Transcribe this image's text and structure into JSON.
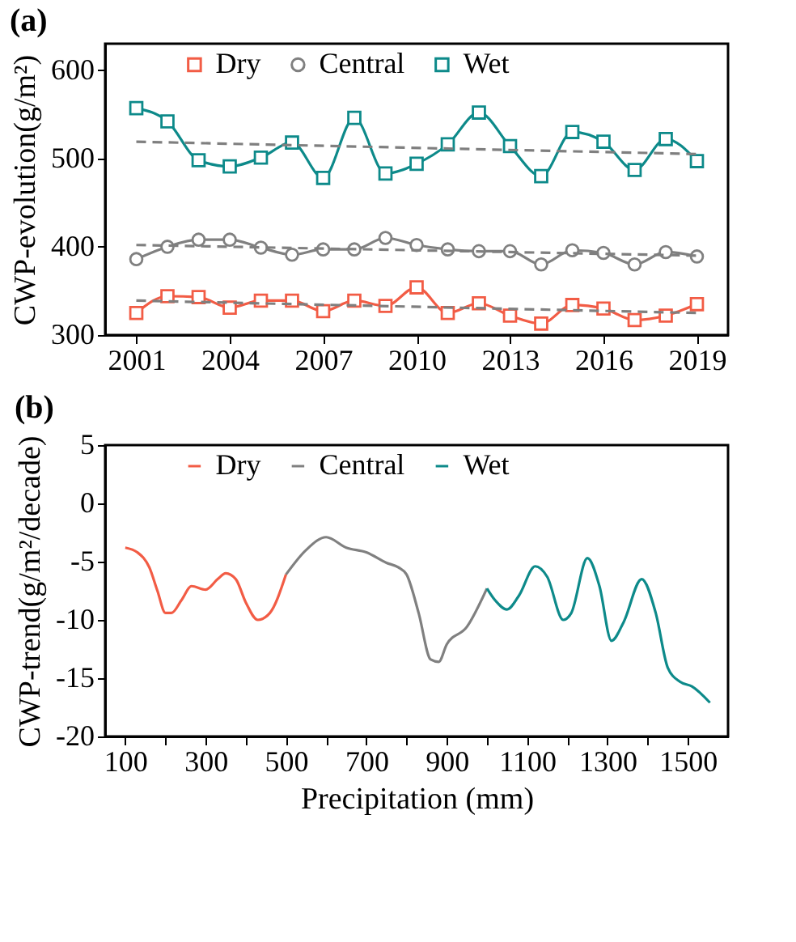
{
  "chart_data": [
    {
      "type": "line",
      "title": "(a)",
      "ylabel": "CWP-evolution(g/m²)",
      "xlim": [
        2000,
        2020
      ],
      "xticks": [
        2001,
        2004,
        2007,
        2010,
        2013,
        2016,
        2019
      ],
      "ylim": [
        300,
        630
      ],
      "yticks": [
        300,
        400,
        500,
        600
      ],
      "legend": "top",
      "grid": false,
      "x": [
        2001,
        2002,
        2003,
        2004,
        2005,
        2006,
        2007,
        2008,
        2009,
        2010,
        2011,
        2012,
        2013,
        2014,
        2015,
        2016,
        2017,
        2018,
        2019
      ],
      "series": [
        {
          "name": "Dry",
          "color": "#f25c45",
          "marker": "square",
          "values": [
            325,
            344,
            343,
            331,
            339,
            339,
            327,
            339,
            333,
            354,
            325,
            336,
            322,
            313,
            334,
            330,
            317,
            322,
            335
          ]
        },
        {
          "name": "Central",
          "color": "#808080",
          "marker": "circle",
          "values": [
            386,
            400,
            408,
            408,
            399,
            391,
            397,
            397,
            410,
            402,
            397,
            395,
            395,
            380,
            396,
            393,
            380,
            394,
            389
          ]
        },
        {
          "name": "Wet",
          "color": "#0d8a8a",
          "marker": "square",
          "values": [
            557,
            542,
            498,
            491,
            501,
            518,
            478,
            546,
            483,
            494,
            516,
            552,
            514,
            480,
            530,
            519,
            487,
            522,
            497
          ]
        },
        {
          "color": "#7f7f7f",
          "line_style": "dashed",
          "x": [
            2001,
            2019
          ],
          "values": [
            339,
            325
          ]
        },
        {
          "color": "#7f7f7f",
          "line_style": "dashed",
          "x": [
            2001,
            2019
          ],
          "values": [
            402,
            390
          ]
        },
        {
          "color": "#7f7f7f",
          "line_style": "dashed",
          "x": [
            2001,
            2019
          ],
          "values": [
            519,
            505
          ]
        }
      ]
    },
    {
      "type": "line",
      "title": "(b)",
      "xlabel": "Precipitation (mm)",
      "ylabel": "CWP-trend(g/m²/decade)",
      "xlim": [
        50,
        1600
      ],
      "xticks": [
        100,
        {
          "value": 200,
          "label": null
        },
        300,
        {
          "value": 400,
          "label": null
        },
        500,
        {
          "value": 600,
          "label": null
        },
        700,
        {
          "value": 800,
          "label": null
        },
        900,
        {
          "value": 1000,
          "label": null
        },
        1100,
        {
          "value": 1200,
          "label": null
        },
        1300,
        {
          "value": 1400,
          "label": null
        },
        1500
      ],
      "ylim": [
        -20,
        5
      ],
      "yticks": [
        -20,
        -15,
        -10,
        -5,
        0,
        5
      ],
      "legend": "top",
      "grid": false,
      "marker": "none",
      "series": [
        {
          "name": "Dry",
          "color": "#f25c45",
          "x": [
            100,
            130,
            160,
            180,
            200,
            215,
            240,
            265,
            300,
            330,
            350,
            375,
            400,
            430,
            460,
            500
          ],
          "values": [
            -3.8,
            -4.2,
            -5.5,
            -7.5,
            -9.4,
            -9.4,
            -8.3,
            -7.1,
            -7.4,
            -6.5,
            -6.0,
            -6.5,
            -8.5,
            -10.0,
            -9.4,
            -6.1
          ]
        },
        {
          "name": "Central",
          "color": "#808080",
          "x": [
            500,
            550,
            600,
            650,
            700,
            750,
            780,
            800,
            830,
            860,
            880,
            900,
            950,
            1000
          ],
          "values": [
            -6.1,
            -4.0,
            -2.9,
            -3.8,
            -4.2,
            -5.1,
            -5.5,
            -6.1,
            -9.4,
            -13.4,
            -13.6,
            -12.1,
            -10.6,
            -7.3
          ]
        },
        {
          "name": "Wet",
          "color": "#0d8a8a",
          "x": [
            1000,
            1020,
            1050,
            1080,
            1120,
            1150,
            1190,
            1210,
            1250,
            1280,
            1310,
            1340,
            1385,
            1420,
            1450,
            1480,
            1510,
            1555
          ],
          "values": [
            -7.3,
            -8.3,
            -9.1,
            -7.9,
            -5.4,
            -6.3,
            -10.0,
            -9.4,
            -4.7,
            -7.1,
            -11.8,
            -10.2,
            -6.5,
            -9.4,
            -14.1,
            -15.3,
            -15.7,
            -17.1
          ]
        }
      ]
    }
  ]
}
